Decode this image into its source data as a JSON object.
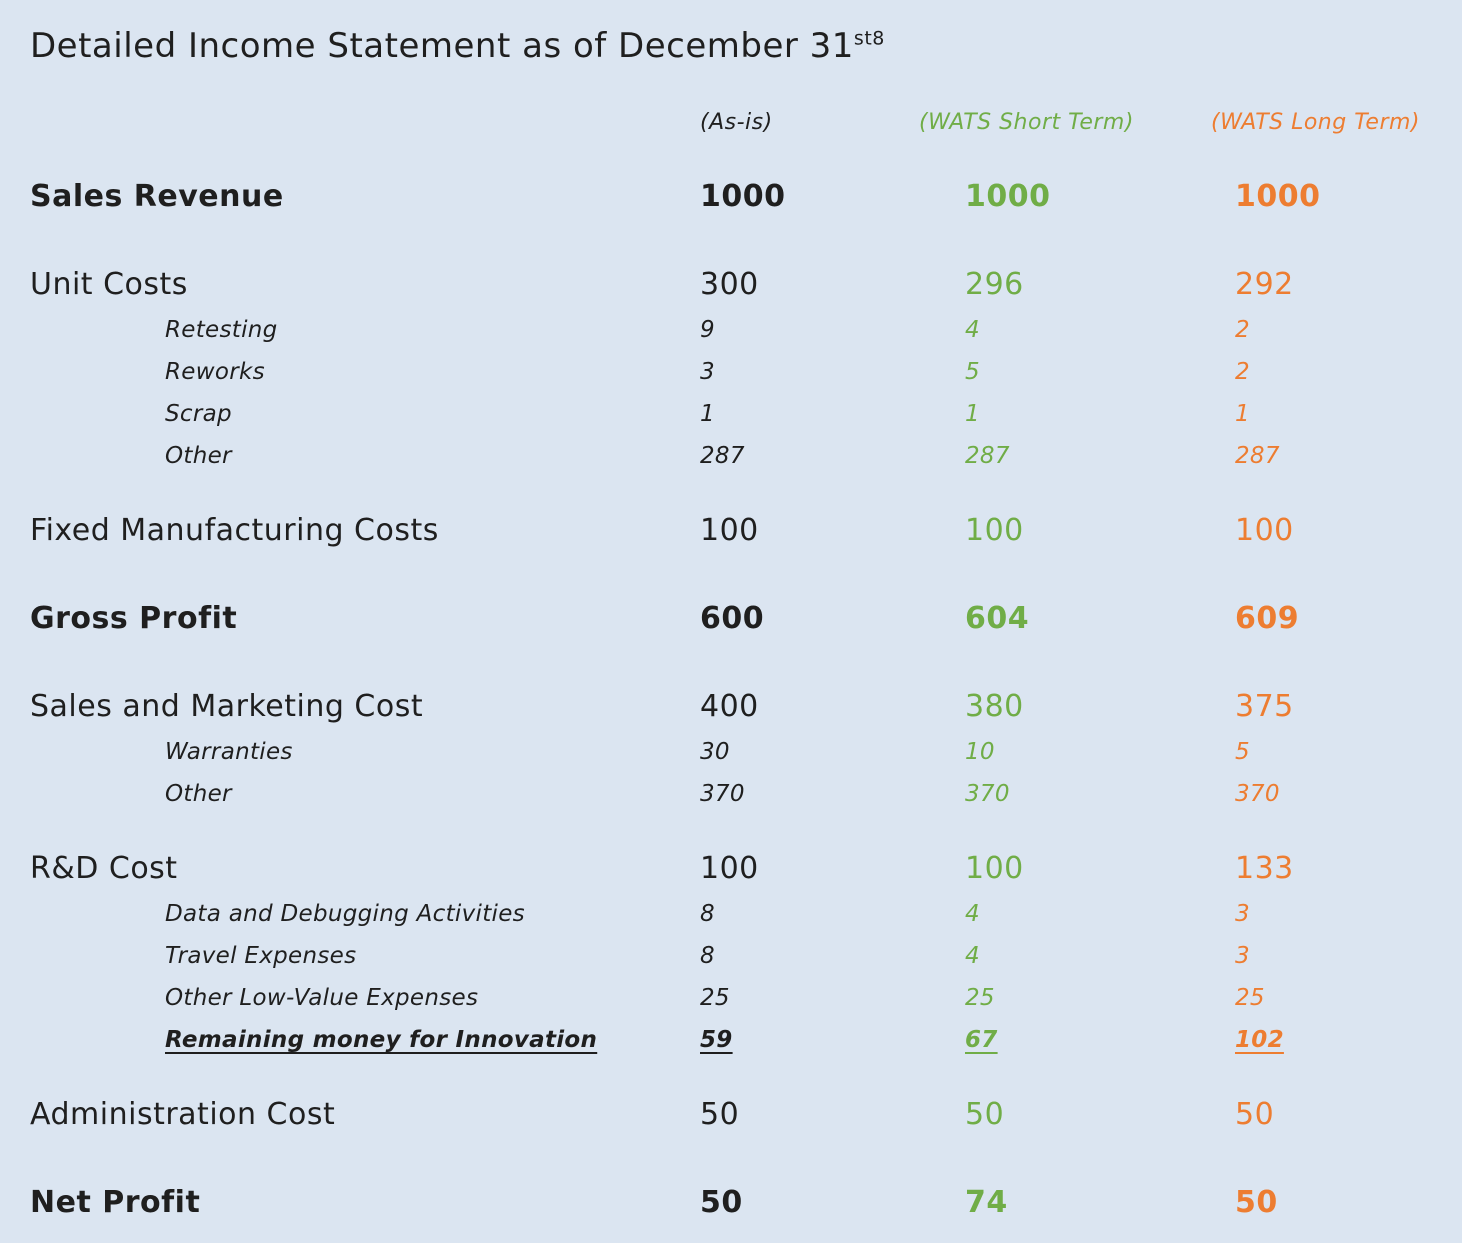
{
  "page": {
    "title": "Detailed Income Statement as of December 31",
    "title_superscript": "st8",
    "background_color": "#dbe5f1",
    "text_color": "#1f1f1f"
  },
  "columns": [
    {
      "label": "(As-is)",
      "color": "#1f1f1f"
    },
    {
      "label": "(WATS Short Term)",
      "color": "#70ad47"
    },
    {
      "label": "(WATS Long Term)",
      "color": "#ed7d31"
    }
  ],
  "sections": [
    {
      "label": "Sales Revenue",
      "bold": true,
      "values": [
        "1000",
        "1000",
        "1000"
      ],
      "children": []
    },
    {
      "label": "Unit Costs",
      "values": [
        "300",
        "296",
        "292"
      ],
      "children": [
        {
          "label": "Retesting",
          "values": [
            "9",
            "4",
            "2"
          ]
        },
        {
          "label": "Reworks",
          "values": [
            "3",
            "5",
            "2"
          ]
        },
        {
          "label": "Scrap",
          "values": [
            "1",
            "1",
            "1"
          ]
        },
        {
          "label": "Other",
          "values": [
            "287",
            "287",
            "287"
          ]
        }
      ]
    },
    {
      "label": "Fixed Manufacturing Costs",
      "values": [
        "100",
        "100",
        "100"
      ],
      "children": []
    },
    {
      "label": "Gross Profit",
      "bold": true,
      "values": [
        "600",
        "604",
        "609"
      ],
      "children": []
    },
    {
      "label": "Sales and Marketing Cost",
      "values": [
        "400",
        "380",
        "375"
      ],
      "children": [
        {
          "label": "Warranties",
          "values": [
            "30",
            "10",
            "5"
          ]
        },
        {
          "label": "Other",
          "values": [
            "370",
            "370",
            "370"
          ]
        }
      ]
    },
    {
      "label": "R&D Cost",
      "values": [
        "100",
        "100",
        "133"
      ],
      "children": [
        {
          "label": "Data and Debugging Activities",
          "values": [
            "8",
            "4",
            "3"
          ]
        },
        {
          "label": "Travel Expenses",
          "values": [
            "8",
            "4",
            "3"
          ]
        },
        {
          "label": "Other Low-Value Expenses",
          "values": [
            "25",
            "25",
            "25"
          ]
        },
        {
          "label": "Remaining money for Innovation",
          "bold": true,
          "underline": true,
          "values": [
            "59",
            "67",
            "102"
          ]
        }
      ]
    },
    {
      "label": "Administration Cost",
      "values": [
        "50",
        "50",
        "50"
      ],
      "children": []
    },
    {
      "label": "Net Profit",
      "bold": true,
      "values": [
        "50",
        "74",
        "50"
      ],
      "children": []
    }
  ]
}
